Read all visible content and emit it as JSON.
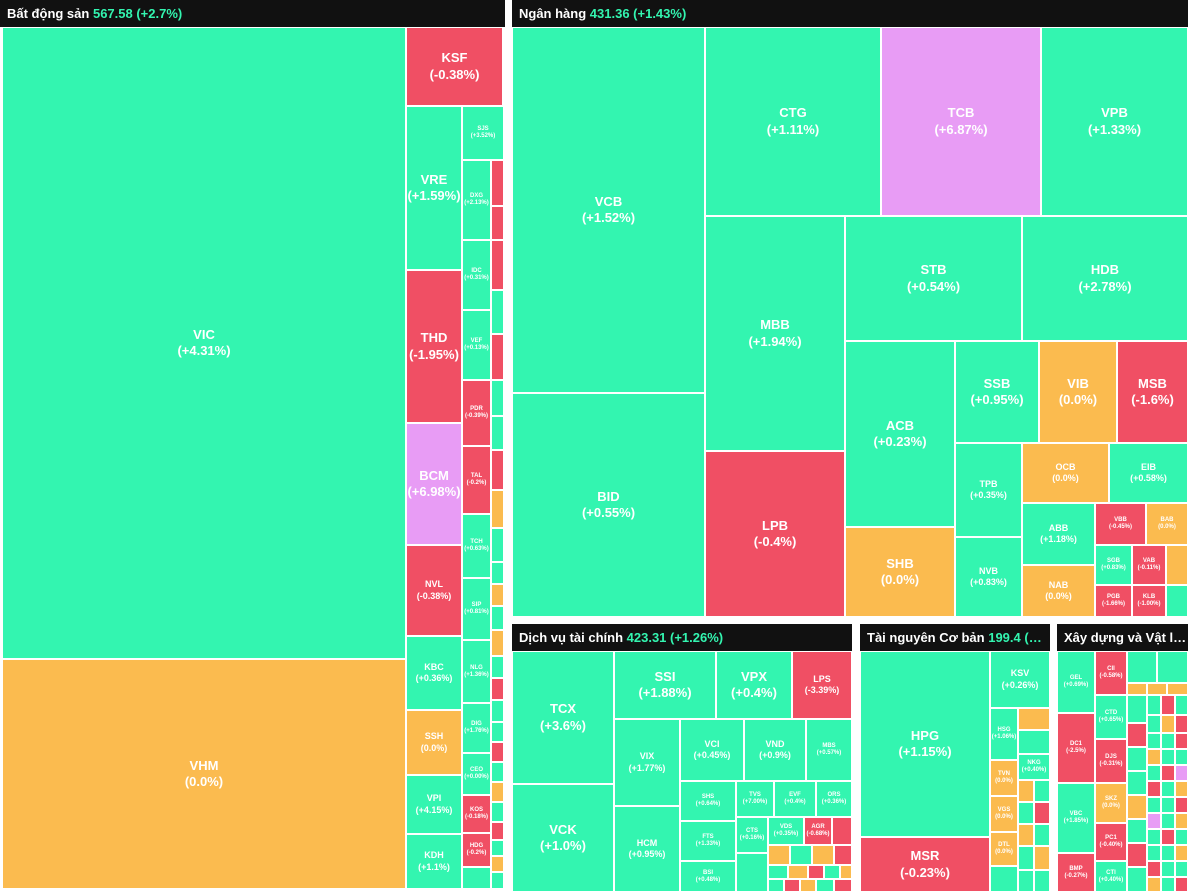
{
  "colors": {
    "up": "#33f5b0",
    "down": "#f04f64",
    "flat": "#fbbb4f",
    "ceiling": "#e89cf5",
    "header_bg": "#111111"
  },
  "sectors": {
    "bds": {
      "name": "Bất động sản",
      "value": "567.58 (+2.7%)"
    },
    "nh": {
      "name": "Ngân hàng",
      "value": "431.36 (+1.43%)"
    },
    "dvtc": {
      "name": "Dịch vụ tài chính",
      "value": "423.31 (+1.26%)"
    },
    "tncb": {
      "name": "Tài nguyên Cơ bản",
      "value": "199.4 (…"
    },
    "xd": {
      "name": "Xây dựng và Vật l…",
      "value": ""
    }
  },
  "tiles": {
    "VIC": {
      "t": "VIC",
      "c": "(+4.31%)"
    },
    "VHM": {
      "t": "VHM",
      "c": "(0.0%)"
    },
    "KSF": {
      "t": "KSF",
      "c": "(-0.38%)"
    },
    "VRE": {
      "t": "VRE",
      "c": "(+1.59%)"
    },
    "THD": {
      "t": "THD",
      "c": "(-1.95%)"
    },
    "BCM": {
      "t": "BCM",
      "c": "(+6.98%)"
    },
    "NVL": {
      "t": "NVL",
      "c": "(-0.38%)"
    },
    "KBC": {
      "t": "KBC",
      "c": "(+0.36%)"
    },
    "SSH": {
      "t": "SSH",
      "c": "(0.0%)"
    },
    "VPI": {
      "t": "VPI",
      "c": "(+4.15%)"
    },
    "KDH": {
      "t": "KDH",
      "c": "(+1.1%)"
    },
    "SJS": {
      "t": "SJS",
      "c": "(+3.52%)"
    },
    "DXG": {
      "t": "DXG",
      "c": "(+2.13%)"
    },
    "IDC": {
      "t": "IDC",
      "c": "(+0.31%)"
    },
    "VEF": {
      "t": "VEF",
      "c": "(+0.13%)"
    },
    "PDR": {
      "t": "PDR",
      "c": "(-0.39%)"
    },
    "TAL": {
      "t": "TAL",
      "c": "(-0.2%)"
    },
    "TCH": {
      "t": "TCH",
      "c": "(+0.63%)"
    },
    "SIP": {
      "t": "SIP",
      "c": "(+0.81%)"
    },
    "NLG": {
      "t": "NLG",
      "c": "(+1.36%)"
    },
    "DIG": {
      "t": "DIG",
      "c": "(+1.76%)"
    },
    "CEO": {
      "t": "CEO",
      "c": "(+0.00%)"
    },
    "KOS": {
      "t": "KOS",
      "c": "(-0.18%)"
    },
    "HDG": {
      "t": "HDG",
      "c": "(-0.2%)"
    },
    "VCB": {
      "t": "VCB",
      "c": "(+1.52%)"
    },
    "BID": {
      "t": "BID",
      "c": "(+0.55%)"
    },
    "CTG": {
      "t": "CTG",
      "c": "(+1.11%)"
    },
    "TCB": {
      "t": "TCB",
      "c": "(+6.87%)"
    },
    "VPB": {
      "t": "VPB",
      "c": "(+1.33%)"
    },
    "MBB": {
      "t": "MBB",
      "c": "(+1.94%)"
    },
    "LPB": {
      "t": "LPB",
      "c": "(-0.4%)"
    },
    "STB": {
      "t": "STB",
      "c": "(+0.54%)"
    },
    "HDB": {
      "t": "HDB",
      "c": "(+2.78%)"
    },
    "ACB": {
      "t": "ACB",
      "c": "(+0.23%)"
    },
    "SHB": {
      "t": "SHB",
      "c": "(0.0%)"
    },
    "SSB": {
      "t": "SSB",
      "c": "(+0.95%)"
    },
    "VIB": {
      "t": "VIB",
      "c": "(0.0%)"
    },
    "MSB": {
      "t": "MSB",
      "c": "(-1.6%)"
    },
    "TPB": {
      "t": "TPB",
      "c": "(+0.35%)"
    },
    "NVB": {
      "t": "NVB",
      "c": "(+0.83%)"
    },
    "OCB": {
      "t": "OCB",
      "c": "(0.0%)"
    },
    "EIB": {
      "t": "EIB",
      "c": "(+0.58%)"
    },
    "ABB": {
      "t": "ABB",
      "c": "(+1.18%)"
    },
    "NAB": {
      "t": "NAB",
      "c": "(0.0%)"
    },
    "VBB": {
      "t": "VBB",
      "c": "(-0.45%)"
    },
    "BAB": {
      "t": "BAB",
      "c": "(0.0%)"
    },
    "SGB": {
      "t": "SGB",
      "c": "(+0.83%)"
    },
    "VAB": {
      "t": "VAB",
      "c": "(-0.11%)"
    },
    "PGB": {
      "t": "PGB",
      "c": "(-1.66%)"
    },
    "KLB": {
      "t": "KLB",
      "c": "(-1.00%)"
    },
    "TCX": {
      "t": "TCX",
      "c": "(+3.6%)"
    },
    "VCK": {
      "t": "VCK",
      "c": "(+1.0%)"
    },
    "SSI": {
      "t": "SSI",
      "c": "(+1.88%)"
    },
    "VPX": {
      "t": "VPX",
      "c": "(+0.4%)"
    },
    "LPS": {
      "t": "LPS",
      "c": "(-3.39%)"
    },
    "VIX": {
      "t": "VIX",
      "c": "(+1.77%)"
    },
    "VCI": {
      "t": "VCI",
      "c": "(+0.45%)"
    },
    "VND": {
      "t": "VND",
      "c": "(+0.9%)"
    },
    "MBS": {
      "t": "MBS",
      "c": "(+0.57%)"
    },
    "HCM": {
      "t": "HCM",
      "c": "(+0.95%)"
    },
    "SHS": {
      "t": "SHS",
      "c": "(+0.64%)"
    },
    "FTS": {
      "t": "FTS",
      "c": "(+1.33%)"
    },
    "BSI": {
      "t": "BSI",
      "c": "(+0.48%)"
    },
    "TVS": {
      "t": "TVS",
      "c": "(+7.00%)"
    },
    "EVF": {
      "t": "EVF",
      "c": "(+0.4%)"
    },
    "ORS": {
      "t": "ORS",
      "c": "(+0.36%)"
    },
    "CTS": {
      "t": "CTS",
      "c": "(+0.16%)"
    },
    "VDS": {
      "t": "VDS",
      "c": "(+0.35%)"
    },
    "AGR": {
      "t": "AGR",
      "c": "(-0.68%)"
    },
    "HPG": {
      "t": "HPG",
      "c": "(+1.15%)"
    },
    "MSR": {
      "t": "MSR",
      "c": "(-0.23%)"
    },
    "KSV": {
      "t": "KSV",
      "c": "(+0.26%)"
    },
    "HSG": {
      "t": "HSG",
      "c": "(+1.06%)"
    },
    "TVN": {
      "t": "TVN",
      "c": "(0.0%)"
    },
    "NKG": {
      "t": "NKG",
      "c": "(+0.40%)"
    },
    "VGS": {
      "t": "VGS",
      "c": "(0.0%)"
    },
    "DTL": {
      "t": "DTL",
      "c": "(0.0%)"
    },
    "GEL": {
      "t": "GEL",
      "c": "(+0.69%)"
    },
    "CII": {
      "t": "CII",
      "c": "(-0.58%)"
    },
    "CTD": {
      "t": "CTD",
      "c": "(+0.65%)"
    },
    "DJS": {
      "t": "DJS",
      "c": "(-0.31%)"
    },
    "DC1": {
      "t": "DC1",
      "c": "(-2.5%)"
    },
    "VBC": {
      "t": "VBC",
      "c": "(+1.85%)"
    },
    "BMP": {
      "t": "BMP",
      "c": "(-0.27%)"
    },
    "SKZ": {
      "t": "SKZ",
      "c": "(0.0%)"
    },
    "PC1": {
      "t": "PC1",
      "c": "(-0.40%)"
    },
    "CTI": {
      "t": "CTI",
      "c": "(+0.40%)"
    }
  }
}
